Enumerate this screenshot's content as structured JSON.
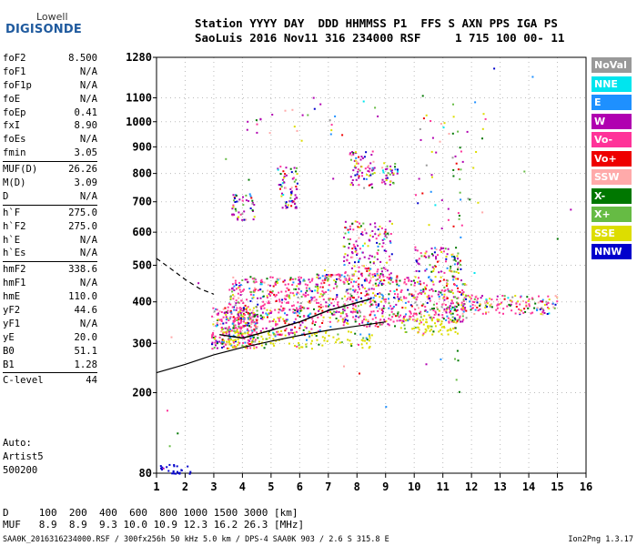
{
  "logo": {
    "line1": "Lowell",
    "line2": "DIGISONDE"
  },
  "header": {
    "line1": "Station YYYY DAY  DDD HHMMSS P1  FFS S AXN PPS IGA PS",
    "line2": "SaoLuis 2016 Nov11 316 234000 RSF     1 715 100 00- 11"
  },
  "params": [
    {
      "label": "foF2",
      "value": "8.500"
    },
    {
      "label": "foF1",
      "value": "N/A"
    },
    {
      "label": "foF1p",
      "value": "N/A"
    },
    {
      "label": "foE",
      "value": "N/A"
    },
    {
      "label": "foEp",
      "value": "0.41"
    },
    {
      "label": "fxI",
      "value": "8.90"
    },
    {
      "label": "foEs",
      "value": "N/A"
    },
    {
      "label": "fmin",
      "value": "3.05"
    },
    {
      "label": "MUF(D)",
      "value": "26.26",
      "sep": true
    },
    {
      "label": "M(D)",
      "value": "3.09"
    },
    {
      "label": "D",
      "value": "N/A"
    },
    {
      "label": "h`F",
      "value": "275.0",
      "sep": true
    },
    {
      "label": "h`F2",
      "value": "275.0"
    },
    {
      "label": "h`E",
      "value": "N/A"
    },
    {
      "label": "h`Es",
      "value": "N/A"
    },
    {
      "label": "hmF2",
      "value": "338.6",
      "sep": true
    },
    {
      "label": "hmF1",
      "value": "N/A"
    },
    {
      "label": "hmE",
      "value": "110.0"
    },
    {
      "label": "yF2",
      "value": "44.6"
    },
    {
      "label": "yF1",
      "value": "N/A"
    },
    {
      "label": "yE",
      "value": "20.0"
    },
    {
      "label": "B0",
      "value": "51.1"
    },
    {
      "label": "B1",
      "value": "1.28"
    },
    {
      "label": "C-level",
      "value": "44",
      "sep": true
    }
  ],
  "auto": {
    "line1": "Auto:",
    "line2": "Artist5",
    "line3": "500200"
  },
  "dmuf": {
    "d_line": "D     100  200  400  600  800 1000 1500 3000 [km]",
    "muf_line": "MUF   8.9  8.9  9.3 10.0 10.9 12.3 16.2 26.3 [MHz]"
  },
  "footer": {
    "text": "SAA0K_2016316234000.RSF / 300fx256h 50 kHz 5.0 km / DPS-4 SAA0K 903 / 2.6 S 315.8 E",
    "version": "Ion2Png 1.3.17"
  },
  "legend": [
    {
      "label": "NoVal",
      "color": "#999999"
    },
    {
      "label": "NNE",
      "color": "#00e5ee"
    },
    {
      "label": "E",
      "color": "#1e90ff"
    },
    {
      "label": "W",
      "color": "#b000b0"
    },
    {
      "label": "Vo-",
      "color": "#ff3399"
    },
    {
      "label": "Vo+",
      "color": "#ee0000"
    },
    {
      "label": "SSW",
      "color": "#ffaaaa"
    },
    {
      "label": "X-",
      "color": "#007700"
    },
    {
      "label": "X+",
      "color": "#66bb44"
    },
    {
      "label": "SSE",
      "color": "#dddd00"
    },
    {
      "label": "NNW",
      "color": "#0000cc"
    }
  ],
  "chart_data": {
    "type": "scatter",
    "xlabel": "",
    "ylabel": "",
    "x_ticks": [
      1,
      2,
      3,
      4,
      5,
      6,
      7,
      8,
      9,
      10,
      11,
      12,
      13,
      14,
      15,
      16
    ],
    "y_ticks": [
      80,
      200,
      300,
      400,
      500,
      600,
      700,
      800,
      900,
      1000,
      1100,
      1280
    ],
    "xlim": [
      1,
      16
    ],
    "ylim": [
      80,
      1280
    ],
    "y_scale": "square-root",
    "clusters": [
      {
        "name": "o-trace F layer",
        "x_range": [
          2.9,
          11.8
        ],
        "h_range": [
          300,
          500
        ],
        "dominant_color": "#ff3399"
      },
      {
        "name": "upper multihop",
        "x_range": [
          3.5,
          9.5
        ],
        "h_range": [
          600,
          900
        ],
        "dominant_color": "#b000b0"
      },
      {
        "name": "tail",
        "x_range": [
          11.5,
          15
        ],
        "h_range": [
          370,
          420
        ],
        "dominant_color": "#ff3399"
      },
      {
        "name": "low echoes",
        "x_range": [
          1.1,
          2.2
        ],
        "h_range": [
          80,
          90
        ],
        "dominant_color": "#0000cc"
      }
    ],
    "profile_line": {
      "x": [
        3.2,
        4,
        5,
        6,
        7,
        8,
        8.5
      ],
      "y": [
        320,
        312,
        330,
        350,
        378,
        398,
        408
      ]
    },
    "extrapolation_line": {
      "x": [
        1,
        2,
        3,
        4,
        5,
        6,
        7,
        8,
        9
      ],
      "y": [
        238,
        255,
        275,
        291,
        305,
        318,
        330,
        340,
        350
      ]
    },
    "dashed_line": {
      "x": [
        1,
        1.5,
        2,
        2.5,
        3.0
      ],
      "y": [
        520,
        490,
        460,
        435,
        420
      ]
    },
    "foF2": 8.5
  }
}
